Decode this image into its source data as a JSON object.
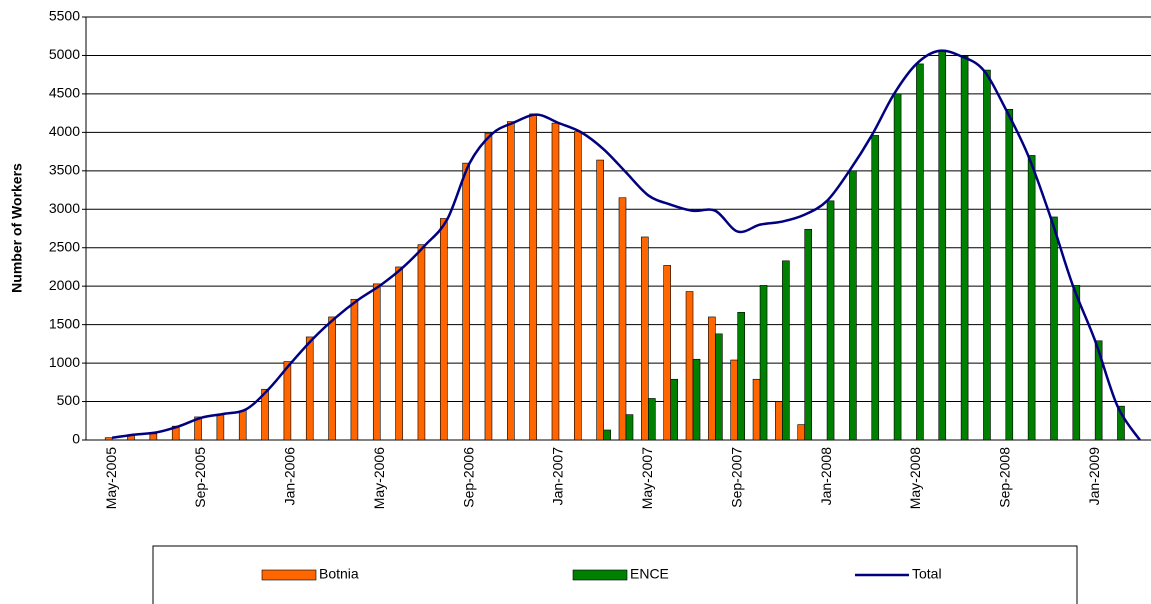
{
  "chart_data": {
    "type": "bar",
    "y_label": "Number of Workers",
    "categories": [
      "May-2005",
      null,
      null,
      null,
      "Sep-2005",
      null,
      null,
      null,
      "Jan-2006",
      null,
      null,
      null,
      "May-2006",
      null,
      null,
      null,
      "Sep-2006",
      null,
      null,
      null,
      "Jan-2007",
      null,
      null,
      null,
      "May-2007",
      null,
      null,
      null,
      "Sep-2007",
      null,
      null,
      null,
      "Jan-2008",
      null,
      null,
      null,
      "May-2008",
      null,
      null,
      null,
      "Sep-2008",
      null,
      null,
      null,
      "Jan-2009",
      null,
      null
    ],
    "series": [
      {
        "name": "Botnia",
        "color": "#ff6600",
        "values": [
          30,
          60,
          80,
          180,
          300,
          330,
          380,
          660,
          1020,
          1340,
          1600,
          1830,
          2030,
          2250,
          2540,
          2880,
          3600,
          3990,
          4140,
          4240,
          4120,
          4010,
          3640,
          3150,
          2640,
          2270,
          1930,
          1600,
          1040,
          790,
          500,
          200,
          null,
          null,
          null,
          null,
          null,
          null,
          null,
          null,
          null,
          null,
          null,
          null,
          null,
          null,
          null
        ]
      },
      {
        "name": "ENCE",
        "color": "#008000",
        "values": [
          null,
          null,
          null,
          null,
          null,
          null,
          null,
          null,
          null,
          null,
          null,
          null,
          null,
          null,
          null,
          null,
          null,
          null,
          null,
          null,
          null,
          null,
          130,
          330,
          540,
          790,
          1050,
          1380,
          1660,
          2010,
          2330,
          2740,
          3110,
          3500,
          3960,
          4500,
          4890,
          5060,
          4990,
          4810,
          4300,
          3700,
          2900,
          2010,
          1290,
          440,
          null
        ]
      },
      {
        "name": "Total",
        "type": "line",
        "color": "#000080",
        "values": [
          30,
          70,
          100,
          180,
          290,
          340,
          400,
          660,
          1000,
          1320,
          1590,
          1820,
          2010,
          2240,
          2530,
          2870,
          3600,
          3980,
          4130,
          4230,
          4120,
          4000,
          3780,
          3480,
          3180,
          3060,
          2980,
          2980,
          2710,
          2800,
          2840,
          2930,
          3110,
          3500,
          3960,
          4500,
          4890,
          5060,
          4990,
          4810,
          4300,
          3700,
          2900,
          2010,
          1290,
          440,
          0
        ]
      }
    ],
    "ylim": [
      0,
      5500
    ],
    "yticks": [
      0,
      500,
      1000,
      1500,
      2000,
      2500,
      3000,
      3500,
      4000,
      4500,
      5000,
      5500
    ],
    "grid": true,
    "legend": "bottom"
  }
}
